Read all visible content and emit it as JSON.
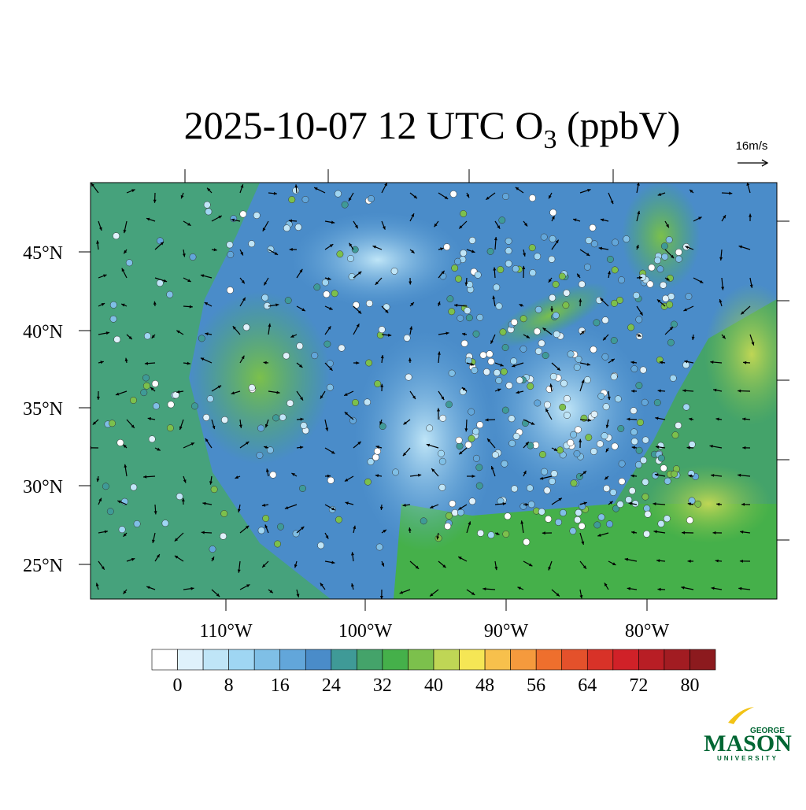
{
  "title": {
    "main": "2025-10-07 12 UTC O",
    "sub": "3",
    "suffix": " (ppbV)"
  },
  "wind_scale": "16m/s",
  "lat_labels": [
    "45°N",
    "40°N",
    "35°N",
    "30°N",
    "25°N"
  ],
  "lon_labels": [
    "110°W",
    "100°W",
    "90°W",
    "80°W"
  ],
  "colorbar": {
    "lim": [
      -4,
      84
    ],
    "ticks": [
      0,
      8,
      16,
      24,
      32,
      40,
      48,
      56,
      64,
      72,
      80
    ],
    "colors": [
      "#ffffff",
      "#dff1fb",
      "#bfe5f7",
      "#9fd6f3",
      "#7fbfe6",
      "#62a6da",
      "#4a8cc9",
      "#3f9a97",
      "#44a36a",
      "#45b04a",
      "#7cc04c",
      "#bfd655",
      "#f5e655",
      "#f7c04c",
      "#f59a3d",
      "#ee6f2d",
      "#e4512b",
      "#d83228",
      "#d02128",
      "#b81e25",
      "#a21c22",
      "#8c1a1e"
    ]
  },
  "logo": {
    "top": "GEORGE",
    "main": "MASON",
    "bottom": "UNIVERSITY"
  }
}
